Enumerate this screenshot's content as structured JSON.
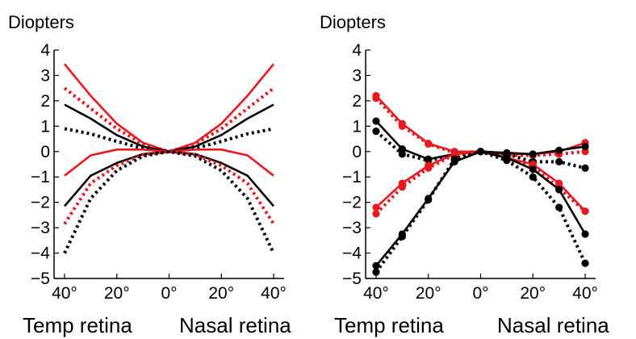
{
  "chart_data": [
    {
      "type": "line",
      "ylabel": "Diopters",
      "ylim": [
        -5,
        4
      ],
      "yticks": [
        "4",
        "3",
        "2",
        "1",
        "0",
        "−1",
        "−2",
        "−3",
        "−4",
        "−5"
      ],
      "x": [
        -40,
        -30,
        -20,
        -10,
        0,
        10,
        20,
        30,
        40
      ],
      "xlim": [
        -44,
        44
      ],
      "xticks": [
        "40°",
        "20°",
        "0°",
        "20°",
        "40°"
      ],
      "region_labels": [
        "Temp retina",
        "Nasal retina"
      ],
      "markers": false,
      "grid": false,
      "series": [
        {
          "color": "#e8191e",
          "dash": "solid",
          "values": [
            3.45,
            2.2,
            1.1,
            0.35,
            0,
            0.35,
            1.1,
            2.2,
            3.45
          ]
        },
        {
          "color": "#e8191e",
          "dash": "dotted",
          "values": [
            2.5,
            1.7,
            0.9,
            0.3,
            0,
            0.3,
            0.9,
            1.7,
            2.5
          ]
        },
        {
          "color": "#000000",
          "dash": "solid",
          "values": [
            1.85,
            1.3,
            0.65,
            0.2,
            0,
            0.2,
            0.65,
            1.3,
            1.85
          ]
        },
        {
          "color": "#000000",
          "dash": "dotted",
          "values": [
            0.9,
            0.7,
            0.4,
            0.12,
            0,
            0.12,
            0.4,
            0.7,
            0.9
          ]
        },
        {
          "color": "#e8191e",
          "dash": "solid",
          "values": [
            -0.95,
            -0.15,
            0.08,
            0.08,
            0,
            0.08,
            0.08,
            -0.15,
            -0.95
          ]
        },
        {
          "color": "#000000",
          "dash": "solid",
          "values": [
            -2.15,
            -0.95,
            -0.45,
            -0.1,
            0,
            -0.1,
            -0.45,
            -0.95,
            -2.15
          ]
        },
        {
          "color": "#e8191e",
          "dash": "dotted",
          "values": [
            -2.85,
            -1.25,
            -0.55,
            -0.12,
            0,
            -0.12,
            -0.55,
            -1.25,
            -2.85
          ]
        },
        {
          "color": "#000000",
          "dash": "dotted",
          "values": [
            -4.0,
            -1.85,
            -0.75,
            -0.18,
            0,
            -0.18,
            -0.75,
            -1.85,
            -4.0
          ]
        }
      ]
    },
    {
      "type": "line",
      "ylabel": "Diopters",
      "ylim": [
        -5,
        4
      ],
      "yticks": [
        "4",
        "3",
        "2",
        "1",
        "0",
        "−1",
        "−2",
        "−3",
        "−4",
        "−5"
      ],
      "x": [
        -40,
        -30,
        -20,
        -10,
        0,
        10,
        20,
        30,
        40
      ],
      "xlim": [
        -44,
        44
      ],
      "xticks": [
        "40°",
        "20°",
        "0°",
        "20°",
        "40°"
      ],
      "region_labels": [
        "Temp retina",
        "Nasal retina"
      ],
      "markers": true,
      "grid": false,
      "series": [
        {
          "color": "#e8191e",
          "dash": "solid",
          "values": [
            2.2,
            1.1,
            0.32,
            0.0,
            0,
            -0.1,
            -0.1,
            0.0,
            0.35
          ]
        },
        {
          "color": "#e8191e",
          "dash": "dotted",
          "values": [
            2.1,
            1.0,
            0.3,
            -0.05,
            0,
            -0.15,
            -0.15,
            -0.1,
            0.0
          ]
        },
        {
          "color": "#000000",
          "dash": "solid",
          "values": [
            1.2,
            0.1,
            -0.3,
            -0.1,
            0,
            -0.05,
            -0.1,
            0.05,
            0.2
          ]
        },
        {
          "color": "#000000",
          "dash": "dotted",
          "values": [
            0.8,
            -0.1,
            -0.35,
            -0.15,
            0,
            -0.1,
            -0.4,
            -0.4,
            -0.65
          ]
        },
        {
          "color": "#e8191e",
          "dash": "solid",
          "values": [
            -2.2,
            -1.25,
            -0.55,
            -0.1,
            0,
            -0.25,
            -0.5,
            -1.25,
            -2.35
          ]
        },
        {
          "color": "#e8191e",
          "dash": "dotted",
          "values": [
            -2.45,
            -1.4,
            -0.65,
            -0.12,
            0,
            -0.3,
            -0.55,
            -1.45,
            -2.35
          ]
        },
        {
          "color": "#000000",
          "dash": "solid",
          "values": [
            -4.5,
            -3.25,
            -1.85,
            -0.4,
            0,
            -0.25,
            -0.7,
            -1.5,
            -3.25
          ]
        },
        {
          "color": "#000000",
          "dash": "dotted",
          "values": [
            -4.75,
            -3.35,
            -1.9,
            -0.3,
            0,
            -0.35,
            -1.0,
            -2.2,
            -4.4
          ]
        }
      ]
    }
  ]
}
